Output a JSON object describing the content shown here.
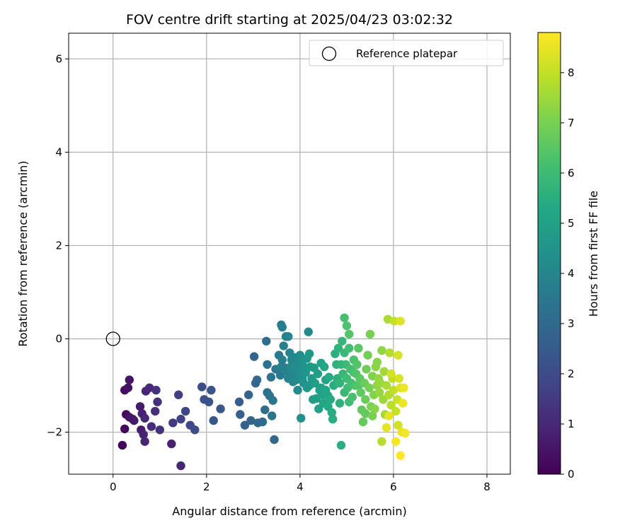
{
  "chart_data": {
    "type": "scatter",
    "title": "FOV centre drift starting at 2025/04/23 03:02:32",
    "xlabel": "Angular distance from reference (arcmin)",
    "ylabel": "Rotation from reference (arcmin)",
    "xlim": [
      -0.95,
      8.5
    ],
    "ylim": [
      -2.9,
      6.55
    ],
    "x_ticks": [
      0,
      2,
      4,
      6,
      8
    ],
    "y_ticks": [
      -2,
      0,
      2,
      4,
      6
    ],
    "x_tick_labels": [
      "0",
      "2",
      "4",
      "6",
      "8"
    ],
    "y_tick_labels": [
      "−2",
      "0",
      "2",
      "4",
      "6"
    ],
    "grid": true,
    "legend": {
      "position": "top-right",
      "entries": [
        "Reference platepar"
      ]
    },
    "colormap": "viridis",
    "colorbar": {
      "label": "Hours from first FF file",
      "range": [
        0,
        8.8
      ],
      "ticks": [
        0,
        1,
        2,
        3,
        4,
        5,
        6,
        7,
        8
      ],
      "tick_labels": [
        "0",
        "1",
        "2",
        "3",
        "4",
        "5",
        "6",
        "7",
        "8"
      ]
    },
    "reference_point": {
      "x": 0,
      "y": 0
    },
    "points": [
      [
        0.2,
        -2.28,
        0.1
      ],
      [
        0.25,
        -1.93,
        0.2
      ],
      [
        0.28,
        -1.62,
        0.25
      ],
      [
        0.25,
        -1.1,
        0.3
      ],
      [
        0.32,
        -1.05,
        0.4
      ],
      [
        0.35,
        -0.88,
        0.45
      ],
      [
        0.35,
        -1.68,
        0.5
      ],
      [
        0.42,
        -1.72,
        0.55
      ],
      [
        0.45,
        -1.75,
        0.6
      ],
      [
        0.58,
        -1.45,
        0.65
      ],
      [
        0.6,
        -1.95,
        0.7
      ],
      [
        0.62,
        -1.6,
        0.8
      ],
      [
        0.65,
        -2.05,
        0.85
      ],
      [
        0.68,
        -2.2,
        0.9
      ],
      [
        0.68,
        -1.7,
        0.95
      ],
      [
        0.7,
        -1.12,
        1.0
      ],
      [
        0.78,
        -1.05,
        1.05
      ],
      [
        0.82,
        -1.88,
        1.1
      ],
      [
        0.9,
        -1.55,
        1.15
      ],
      [
        0.95,
        -1.35,
        1.2
      ],
      [
        0.92,
        -1.1,
        1.25
      ],
      [
        1.0,
        -1.95,
        1.3
      ],
      [
        1.25,
        -2.25,
        0.8
      ],
      [
        1.45,
        -2.72,
        0.9
      ],
      [
        1.28,
        -1.8,
        1.5
      ],
      [
        1.4,
        -1.2,
        1.6
      ],
      [
        1.45,
        -1.72,
        1.7
      ],
      [
        1.55,
        -1.55,
        1.8
      ],
      [
        1.65,
        -1.85,
        1.9
      ],
      [
        1.75,
        -1.95,
        2.0
      ],
      [
        1.9,
        -1.03,
        2.1
      ],
      [
        1.95,
        -1.3,
        2.2
      ],
      [
        2.05,
        -1.35,
        2.25
      ],
      [
        2.1,
        -1.1,
        2.3
      ],
      [
        2.15,
        -1.75,
        2.35
      ],
      [
        2.3,
        -1.5,
        2.4
      ],
      [
        2.7,
        -1.35,
        2.6
      ],
      [
        2.72,
        -1.62,
        2.7
      ],
      [
        2.82,
        -1.85,
        2.75
      ],
      [
        2.9,
        -1.2,
        2.8
      ],
      [
        2.95,
        -1.75,
        2.85
      ],
      [
        3.02,
        -0.38,
        2.9
      ],
      [
        3.05,
        -0.95,
        2.95
      ],
      [
        3.08,
        -0.88,
        3.0
      ],
      [
        3.1,
        -1.8,
        3.0
      ],
      [
        3.2,
        -1.78,
        3.05
      ],
      [
        3.25,
        -1.52,
        3.1
      ],
      [
        3.28,
        -0.05,
        3.15
      ],
      [
        3.3,
        -1.15,
        3.2
      ],
      [
        3.3,
        -0.55,
        3.25
      ],
      [
        3.35,
        -1.22,
        3.3
      ],
      [
        3.38,
        -0.82,
        3.35
      ],
      [
        3.4,
        -1.65,
        3.4
      ],
      [
        3.42,
        -1.32,
        3.45
      ],
      [
        3.45,
        -2.16,
        3.0
      ],
      [
        3.48,
        -0.65,
        3.5
      ],
      [
        3.55,
        -0.35,
        3.55
      ],
      [
        3.58,
        -0.78,
        3.6
      ],
      [
        3.6,
        0.3,
        3.65
      ],
      [
        3.62,
        0.25,
        3.7
      ],
      [
        3.62,
        -0.45,
        3.7
      ],
      [
        3.65,
        -0.15,
        3.75
      ],
      [
        3.68,
        -0.62,
        3.8
      ],
      [
        3.7,
        0.05,
        3.85
      ],
      [
        3.72,
        -0.7,
        3.9
      ],
      [
        3.75,
        0.05,
        3.9
      ],
      [
        3.78,
        -0.3,
        3.95
      ],
      [
        3.8,
        -0.6,
        4.0
      ],
      [
        3.82,
        -0.45,
        4.0
      ],
      [
        3.85,
        -0.92,
        4.05
      ],
      [
        3.88,
        -0.75,
        4.1
      ],
      [
        3.9,
        -0.4,
        4.1
      ],
      [
        3.92,
        -0.88,
        4.15
      ],
      [
        3.95,
        -0.55,
        4.2
      ],
      [
        3.95,
        -1.1,
        4.2
      ],
      [
        3.98,
        -0.65,
        4.25
      ],
      [
        4.0,
        -0.35,
        4.3
      ],
      [
        4.02,
        -0.78,
        4.35
      ],
      [
        4.02,
        -1.7,
        4.4
      ],
      [
        4.05,
        -0.5,
        4.4
      ],
      [
        4.08,
        -0.95,
        4.45
      ],
      [
        4.1,
        -0.62,
        4.5
      ],
      [
        4.12,
        -0.72,
        4.55
      ],
      [
        4.15,
        -0.42,
        4.6
      ],
      [
        4.15,
        -1.05,
        4.6
      ],
      [
        4.18,
        0.15,
        4.2
      ],
      [
        4.2,
        -0.32,
        4.65
      ],
      [
        4.22,
        -0.6,
        4.7
      ],
      [
        4.25,
        -0.85,
        4.75
      ],
      [
        4.28,
        -1.3,
        4.8
      ],
      [
        4.32,
        -0.95,
        4.85
      ],
      [
        4.35,
        -1.28,
        4.9
      ],
      [
        4.38,
        -0.75,
        4.95
      ],
      [
        4.4,
        -1.5,
        5.0
      ],
      [
        4.42,
        -1.1,
        5.0
      ],
      [
        4.45,
        -0.52,
        5.05
      ],
      [
        4.48,
        -1.2,
        5.1
      ],
      [
        4.5,
        -1.38,
        5.15
      ],
      [
        4.52,
        -0.6,
        5.2
      ],
      [
        4.55,
        -1.1,
        5.25
      ],
      [
        4.6,
        -1.45,
        5.3
      ],
      [
        4.62,
        -0.82,
        5.35
      ],
      [
        4.65,
        -1.3,
        5.35
      ],
      [
        4.68,
        -1.58,
        5.4
      ],
      [
        4.7,
        -1.72,
        5.45
      ],
      [
        4.72,
        -1.0,
        5.5
      ],
      [
        4.75,
        -0.32,
        5.55
      ],
      [
        4.78,
        -0.55,
        5.6
      ],
      [
        4.8,
        -0.85,
        5.6
      ],
      [
        4.82,
        -0.2,
        5.65
      ],
      [
        4.85,
        -0.95,
        5.7
      ],
      [
        4.88,
        -2.28,
        5.5
      ],
      [
        4.88,
        -0.55,
        5.75
      ],
      [
        4.9,
        -0.05,
        5.8
      ],
      [
        4.92,
        -0.75,
        5.85
      ],
      [
        4.95,
        -0.3,
        5.9
      ],
      [
        4.95,
        0.45,
        6.2
      ],
      [
        4.98,
        -0.55,
        5.95
      ],
      [
        5.0,
        -0.85,
        6.0
      ],
      [
        5.0,
        0.28,
        6.3
      ],
      [
        5.02,
        -1.05,
        6.0
      ],
      [
        5.05,
        -0.2,
        6.05
      ],
      [
        5.05,
        0.1,
        6.4
      ],
      [
        5.08,
        -0.65,
        6.1
      ],
      [
        5.1,
        -0.95,
        6.15
      ],
      [
        5.12,
        -1.25,
        6.2
      ],
      [
        5.15,
        -0.45,
        6.25
      ],
      [
        5.18,
        -1.0,
        6.3
      ],
      [
        5.2,
        -0.75,
        6.35
      ],
      [
        5.22,
        -0.55,
        6.4
      ],
      [
        5.25,
        -0.2,
        6.5
      ],
      [
        5.28,
        -0.85,
        6.55
      ],
      [
        5.3,
        -1.15,
        6.6
      ],
      [
        5.32,
        -1.52,
        6.65
      ],
      [
        5.35,
        -1.78,
        6.7
      ],
      [
        5.38,
        -0.95,
        6.75
      ],
      [
        5.4,
        -1.3,
        6.8
      ],
      [
        5.42,
        -0.65,
        6.85
      ],
      [
        5.45,
        -0.35,
        6.9
      ],
      [
        5.48,
        -1.05,
        6.95
      ],
      [
        5.5,
        0.1,
        7.0
      ],
      [
        5.52,
        -1.45,
        7.05
      ],
      [
        5.55,
        -0.8,
        7.1
      ],
      [
        5.58,
        -1.2,
        7.15
      ],
      [
        5.6,
        -1.5,
        7.2
      ],
      [
        5.62,
        -0.6,
        7.25
      ],
      [
        5.65,
        -1.0,
        7.3
      ],
      [
        5.68,
        -0.85,
        7.35
      ],
      [
        5.7,
        -1.15,
        7.4
      ],
      [
        5.72,
        -0.95,
        7.45
      ],
      [
        5.75,
        -0.25,
        7.3
      ],
      [
        5.75,
        -2.2,
        7.8
      ],
      [
        5.78,
        -1.3,
        7.5
      ],
      [
        5.8,
        -0.7,
        7.55
      ],
      [
        5.82,
        -1.62,
        7.6
      ],
      [
        5.85,
        -1.0,
        7.65
      ],
      [
        5.88,
        0.42,
        7.7
      ],
      [
        5.9,
        -1.2,
        7.75
      ],
      [
        5.92,
        -0.3,
        7.8
      ],
      [
        5.95,
        -1.42,
        7.85
      ],
      [
        5.98,
        -0.85,
        7.9
      ],
      [
        6.0,
        -1.1,
        7.95
      ],
      [
        6.02,
        0.38,
        8.0
      ],
      [
        6.05,
        -1.55,
        8.05
      ],
      [
        6.08,
        -1.3,
        8.1
      ],
      [
        6.1,
        -1.85,
        8.2
      ],
      [
        6.1,
        -0.35,
        8.25
      ],
      [
        6.12,
        -0.85,
        8.3
      ],
      [
        6.15,
        -1.05,
        8.35
      ],
      [
        6.15,
        0.38,
        8.4
      ],
      [
        6.18,
        -2.0,
        8.5
      ],
      [
        6.2,
        -1.38,
        8.55
      ],
      [
        6.22,
        -1.05,
        8.6
      ],
      [
        6.25,
        -2.02,
        8.65
      ],
      [
        6.15,
        -2.5,
        8.8
      ],
      [
        6.05,
        -2.2,
        8.7
      ],
      [
        5.9,
        -1.65,
        8.45
      ],
      [
        5.85,
        -1.9,
        8.5
      ],
      [
        5.95,
        -0.75,
        8.2
      ],
      [
        5.65,
        -0.5,
        7.2
      ],
      [
        5.55,
        -1.65,
        7.0
      ],
      [
        5.4,
        -1.6,
        6.7
      ],
      [
        5.25,
        -1.0,
        6.4
      ],
      [
        5.15,
        -0.72,
        6.2
      ],
      [
        5.05,
        -1.35,
        6.0
      ],
      [
        4.95,
        -1.15,
        5.85
      ],
      [
        4.85,
        -1.38,
        5.6
      ],
      [
        4.78,
        -0.95,
        5.5
      ],
      [
        4.6,
        -1.22,
        5.2
      ],
      [
        4.55,
        -0.88,
        5.1
      ],
      [
        4.45,
        -1.05,
        4.95
      ],
      [
        4.3,
        -0.62,
        4.75
      ],
      [
        4.2,
        -1.0,
        4.6
      ],
      [
        4.05,
        -0.85,
        4.4
      ],
      [
        3.9,
        -0.6,
        4.2
      ],
      [
        3.75,
        -0.85,
        3.95
      ],
      [
        3.6,
        -0.6,
        3.7
      ]
    ]
  }
}
